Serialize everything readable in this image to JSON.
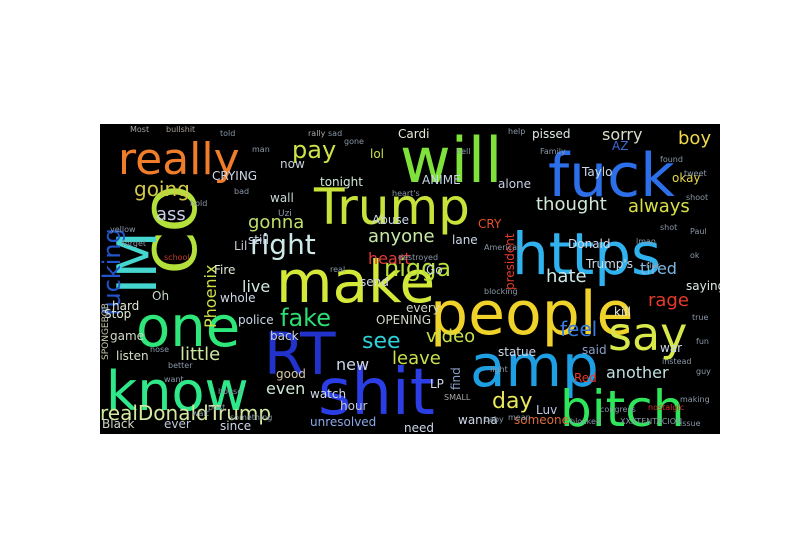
{
  "words": [
    {
      "text": "will",
      "color": "#7fe23a"
    },
    {
      "text": "fuck",
      "color": "#2c6fe8"
    },
    {
      "text": "really",
      "color": "#ef7d2a"
    },
    {
      "text": "Trump",
      "color": "#c9e23a"
    },
    {
      "text": "CO",
      "color": "#b3e03a"
    },
    {
      "text": "IM",
      "color": "#45d6d0"
    },
    {
      "text": "https",
      "color": "#2fb2ee"
    },
    {
      "text": "make",
      "color": "#d4e83a"
    },
    {
      "text": "people",
      "color": "#f0d32a"
    },
    {
      "text": "one",
      "color": "#2ee67a"
    },
    {
      "text": "say",
      "color": "#d8e84a"
    },
    {
      "text": "RT",
      "color": "#2233cc"
    },
    {
      "text": "amp",
      "color": "#1e9fe4"
    },
    {
      "text": "know",
      "color": "#2fe88a"
    },
    {
      "text": "shit",
      "color": "#2b3ee6"
    },
    {
      "text": "bitch",
      "color": "#2ee65a"
    },
    {
      "text": "fucking",
      "color": "#2454cc"
    },
    {
      "text": "right",
      "color": "#cfe8e8"
    },
    {
      "text": "nigga",
      "color": "#b6e23a"
    },
    {
      "text": "fake",
      "color": "#2fdc74"
    },
    {
      "text": "pay",
      "color": "#cfe24a"
    },
    {
      "text": "going",
      "color": "#d4c84a"
    },
    {
      "text": "gonna",
      "color": "#bfe06a"
    },
    {
      "text": "thought",
      "color": "#d0e8d8"
    },
    {
      "text": "always",
      "color": "#d8e048"
    },
    {
      "text": "sorry",
      "color": "#d6e0c8"
    },
    {
      "text": "boy",
      "color": "#f0d84a"
    },
    {
      "text": "anyone",
      "color": "#c6e8a8"
    },
    {
      "text": "Phoenix",
      "color": "#d0e048"
    },
    {
      "text": "heart",
      "color": "#e23a3a"
    },
    {
      "text": "live",
      "color": "#cfe8e0"
    },
    {
      "text": "see",
      "color": "#2fd0d8"
    },
    {
      "text": "video",
      "color": "#c8e048"
    },
    {
      "text": "feel",
      "color": "#3a7ae0"
    },
    {
      "text": "hate",
      "color": "#cfe8e8"
    },
    {
      "text": "tired",
      "color": "#7fb6e2"
    },
    {
      "text": "rage",
      "color": "#e83a2a"
    },
    {
      "text": "little",
      "color": "#d0e8a0"
    },
    {
      "text": "another",
      "color": "#c0e0e0"
    },
    {
      "text": "new",
      "color": "#cfd8e8"
    },
    {
      "text": "leave",
      "color": "#c8e04a"
    },
    {
      "text": "day",
      "color": "#e8e85a"
    },
    {
      "text": "realDonaldTrump",
      "color": "#d4e8a0"
    },
    {
      "text": "even",
      "color": "#d0e8d8"
    },
    {
      "text": "ass",
      "color": "#c8d0e8"
    },
    {
      "text": "lol",
      "color": "#d0e048"
    },
    {
      "text": "Cardi",
      "color": "#e8e8d8"
    },
    {
      "text": "pissed",
      "color": "#e0e8e8"
    },
    {
      "text": "tonight",
      "color": "#d0e8d8"
    },
    {
      "text": "okay",
      "color": "#e8d84a"
    },
    {
      "text": "saying",
      "color": "#e0e8e8"
    },
    {
      "text": "kill",
      "color": "#e8e8d8"
    },
    {
      "text": "war",
      "color": "#c8d8e8"
    },
    {
      "text": "Luv",
      "color": "#c0c8e8"
    },
    {
      "text": "wanna",
      "color": "#cfd8e8"
    },
    {
      "text": "unresolved",
      "color": "#8aa8e8"
    },
    {
      "text": "need",
      "color": "#cfd8e8"
    },
    {
      "text": "someone",
      "color": "#d86a3a"
    },
    {
      "text": "since",
      "color": "#cfd8e8"
    },
    {
      "text": "watch",
      "color": "#cfd8e8"
    },
    {
      "text": "hour",
      "color": "#c0c8d8"
    },
    {
      "text": "police",
      "color": "#c8d8e8"
    },
    {
      "text": "back",
      "color": "#c8d0d8"
    },
    {
      "text": "whole",
      "color": "#d0d8e8"
    },
    {
      "text": "hard",
      "color": "#e0e8d8"
    },
    {
      "text": "Stop",
      "color": "#e0e8d8"
    },
    {
      "text": "game",
      "color": "#d0d8c8"
    },
    {
      "text": "listen",
      "color": "#d8e0c8"
    },
    {
      "text": "Black",
      "color": "#d0d8c8"
    },
    {
      "text": "ever",
      "color": "#c0c8d8"
    },
    {
      "text": "Oh",
      "color": "#c8d8c8"
    },
    {
      "text": "Fire",
      "color": "#e0e8d8"
    },
    {
      "text": "CRYING",
      "color": "#d0d8e8"
    },
    {
      "text": "wall",
      "color": "#c8d8d8"
    },
    {
      "text": "still",
      "color": "#c8d8e8"
    },
    {
      "text": "ANIME",
      "color": "#c8d8e8"
    },
    {
      "text": "send",
      "color": "#d0d8e8"
    },
    {
      "text": "alone",
      "color": "#c8d0e8"
    },
    {
      "text": "president",
      "color": "#e83a2a"
    },
    {
      "text": "Donald",
      "color": "#d0d8e8"
    },
    {
      "text": "Taylo",
      "color": "#c8d8e8"
    },
    {
      "text": "Trump's",
      "color": "#d0d8e8"
    },
    {
      "text": "Red",
      "color": "#e83a2a"
    },
    {
      "text": "said",
      "color": "#8aa0c8"
    },
    {
      "text": "statue",
      "color": "#d0d8e8"
    },
    {
      "text": "find",
      "color": "#8aa0c8"
    },
    {
      "text": "lane",
      "color": "#c8d8e8"
    },
    {
      "text": "Go",
      "color": "#c8d8e8"
    },
    {
      "text": "OPENING",
      "color": "#d0d8c8"
    },
    {
      "text": "every",
      "color": "#d0d8c8"
    },
    {
      "text": "Abuse",
      "color": "#c8d8e8"
    },
    {
      "text": "good",
      "color": "#d8c8a8"
    },
    {
      "text": "now",
      "color": "#c8d0d8"
    },
    {
      "text": "Lil",
      "color": "#c8c8d8"
    },
    {
      "text": "LP",
      "color": "#d0d8e8"
    },
    {
      "text": "AZ",
      "color": "#3a6ad8"
    },
    {
      "text": "CRY",
      "color": "#e8502a"
    },
    {
      "text": "SPONGEBOB",
      "color": "#c8c8a8"
    },
    {
      "text": "American",
      "color": "#8a98a8"
    },
    {
      "text": "Uzi",
      "color": "#8a98a8"
    },
    {
      "text": "SMALL",
      "color": "#a8a8a8"
    },
    {
      "text": "destroyed",
      "color": "#8a98a8"
    },
    {
      "text": "blocking",
      "color": "#8a98a8"
    },
    {
      "text": "blocked",
      "color": "#8a98a8"
    },
    {
      "text": "XXXTENTACION",
      "color": "#8a98a8"
    },
    {
      "text": "issue",
      "color": "#8a98a8"
    },
    {
      "text": "congress",
      "color": "#8a98a8"
    },
    {
      "text": "nostalgic",
      "color": "#d8302a"
    },
    {
      "text": "rally",
      "color": "#a8a8a8"
    },
    {
      "text": "Family",
      "color": "#8a98a8"
    },
    {
      "text": "help",
      "color": "#8a98a8"
    },
    {
      "text": "found",
      "color": "#8a98a8"
    },
    {
      "text": "Most",
      "color": "#a8a8a8"
    },
    {
      "text": "bullshit",
      "color": "#a8a098"
    },
    {
      "text": "risk",
      "color": "#8a98a8"
    },
    {
      "text": "making",
      "color": "#8a98a8"
    },
    {
      "text": "house",
      "color": "#8a98a8"
    },
    {
      "text": "better",
      "color": "#8a98a8"
    },
    {
      "text": "want",
      "color": "#8a98a8"
    },
    {
      "text": "hose",
      "color": "#8a98a8"
    },
    {
      "text": "light",
      "color": "#8a98a8"
    },
    {
      "text": "forget",
      "color": "#8a98a8"
    },
    {
      "text": "yellow",
      "color": "#8a98a8"
    },
    {
      "text": "shoot",
      "color": "#8a98a8"
    },
    {
      "text": "something",
      "color": "#8a98a8"
    },
    {
      "text": "heart's",
      "color": "#8a98a8"
    },
    {
      "text": "tweet",
      "color": "#8a98a8"
    },
    {
      "text": "school",
      "color": "#c03a2a"
    },
    {
      "text": "hold",
      "color": "#8a98a8"
    },
    {
      "text": "Paul",
      "color": "#8a98a8"
    },
    {
      "text": "mean",
      "color": "#8a98a8"
    },
    {
      "text": "baby",
      "color": "#8a98a8"
    },
    {
      "text": "post",
      "color": "#8a98a8"
    },
    {
      "text": "bad",
      "color": "#8a98a8"
    },
    {
      "text": "real",
      "color": "#8a98a8"
    },
    {
      "text": "hell",
      "color": "#8a98a8"
    },
    {
      "text": "sad",
      "color": "#8a98a8"
    },
    {
      "text": "lmao",
      "color": "#8a98a8"
    },
    {
      "text": "instead",
      "color": "#8a98a8"
    },
    {
      "text": "told",
      "color": "#8a98a8"
    },
    {
      "text": "gone",
      "color": "#8a98a8"
    },
    {
      "text": "shot",
      "color": "#8a98a8"
    },
    {
      "text": "ok",
      "color": "#8a98a8"
    },
    {
      "text": "true",
      "color": "#8a98a8"
    },
    {
      "text": "guy",
      "color": "#8a98a8"
    },
    {
      "text": "wait",
      "color": "#8a98a8"
    },
    {
      "text": "fun",
      "color": "#8a98a8"
    },
    {
      "text": "man",
      "color": "#8a98a8"
    }
  ]
}
